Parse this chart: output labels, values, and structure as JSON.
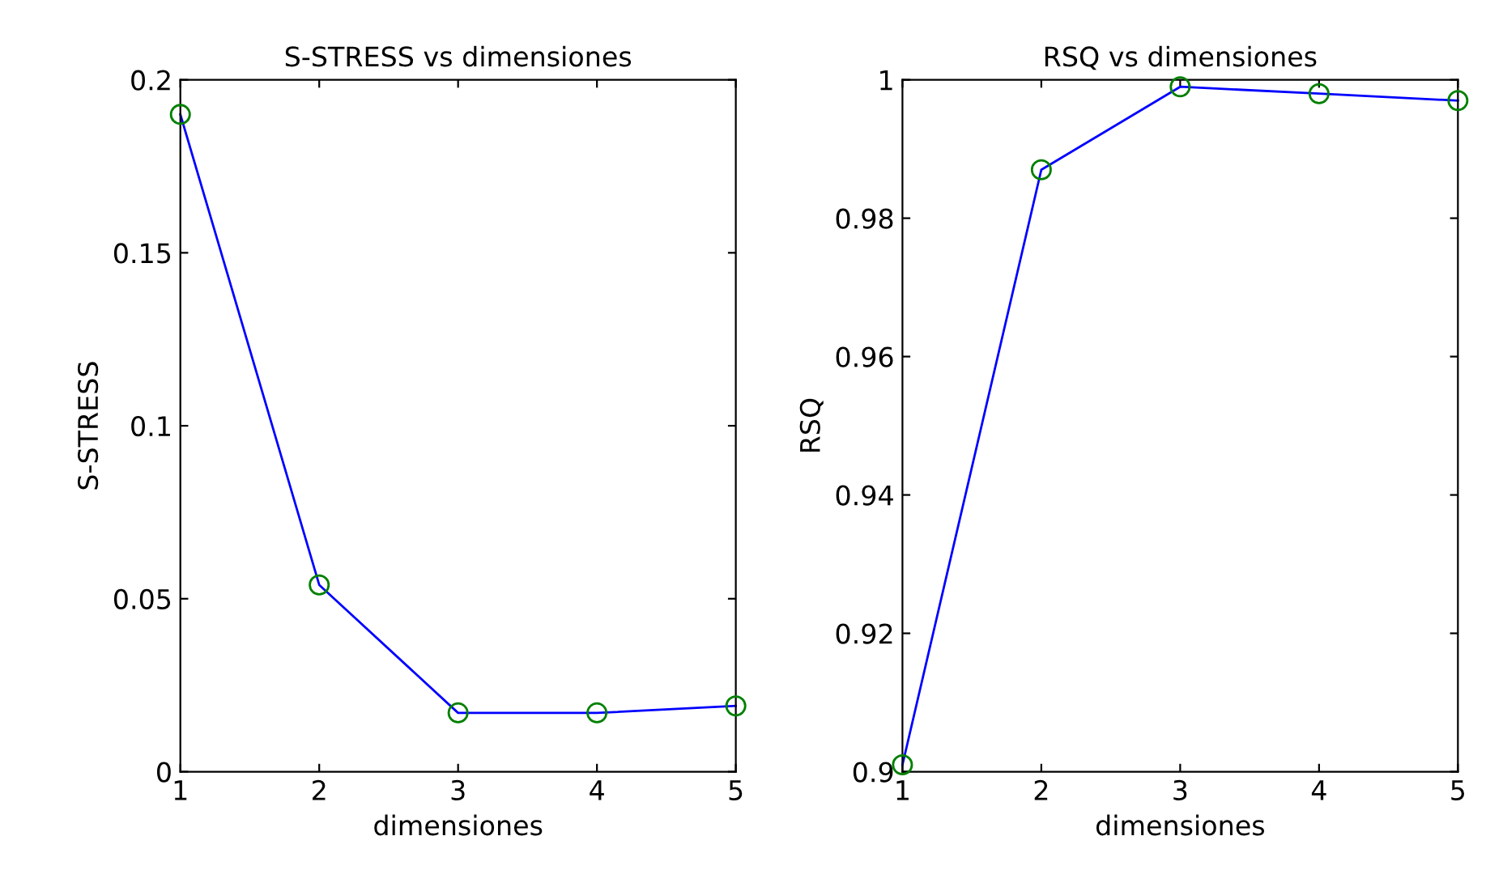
{
  "chart_data": [
    {
      "type": "line",
      "title": "S-STRESS vs dimensiones",
      "xlabel": "dimensiones",
      "ylabel": "S-STRESS",
      "x": [
        1,
        2,
        3,
        4,
        5
      ],
      "xlim": [
        1,
        5
      ],
      "xticks": [
        1,
        2,
        3,
        4,
        5
      ],
      "ylim": [
        0,
        0.2
      ],
      "yticks": [
        0,
        0.05,
        0.1,
        0.15,
        0.2
      ],
      "grid": false,
      "legend": false,
      "series": [
        {
          "color": "#0000ff",
          "values": [
            0.19,
            0.054,
            0.017,
            0.017,
            0.019
          ]
        },
        {
          "type": "scatter",
          "color": "#008000",
          "marker": "circle",
          "values": [
            0.19,
            0.054,
            0.017,
            0.017,
            0.019
          ]
        }
      ]
    },
    {
      "type": "line",
      "title": "RSQ vs dimensiones",
      "xlabel": "dimensiones",
      "ylabel": "RSQ",
      "x": [
        1,
        2,
        3,
        4,
        5
      ],
      "xlim": [
        1,
        5
      ],
      "xticks": [
        1,
        2,
        3,
        4,
        5
      ],
      "ylim": [
        0.9,
        1
      ],
      "yticks": [
        0.9,
        0.92,
        0.94,
        0.96,
        0.98,
        1
      ],
      "grid": false,
      "legend": false,
      "series": [
        {
          "color": "#0000ff",
          "values": [
            0.901,
            0.987,
            0.999,
            0.998,
            0.997
          ]
        },
        {
          "type": "scatter",
          "color": "#008000",
          "marker": "circle",
          "values": [
            0.901,
            0.987,
            0.999,
            0.998,
            0.997
          ]
        }
      ]
    }
  ]
}
